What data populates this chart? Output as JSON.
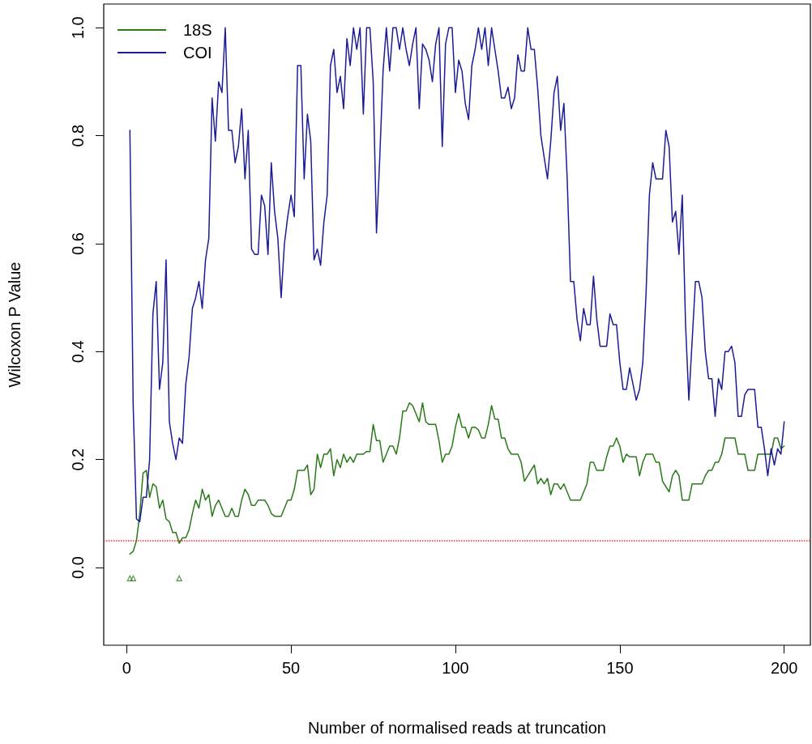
{
  "chart_data": {
    "type": "line",
    "xlabel": "Number of normalised reads at truncation",
    "ylabel": "Wilcoxon P Value",
    "x": [
      1,
      2,
      3,
      4,
      5,
      6,
      7,
      8,
      9,
      10,
      11,
      12,
      13,
      14,
      15,
      16,
      17,
      18,
      19,
      20,
      21,
      22,
      23,
      24,
      25,
      26,
      27,
      28,
      29,
      30,
      31,
      32,
      33,
      34,
      35,
      36,
      37,
      38,
      39,
      40,
      41,
      42,
      43,
      44,
      45,
      46,
      47,
      48,
      49,
      50,
      51,
      52,
      53,
      54,
      55,
      56,
      57,
      58,
      59,
      60,
      61,
      62,
      63,
      64,
      65,
      66,
      67,
      68,
      69,
      70,
      71,
      72,
      73,
      74,
      75,
      76,
      77,
      78,
      79,
      80,
      81,
      82,
      83,
      84,
      85,
      86,
      87,
      88,
      89,
      90,
      91,
      92,
      93,
      94,
      95,
      96,
      97,
      98,
      99,
      100,
      101,
      102,
      103,
      104,
      105,
      106,
      107,
      108,
      109,
      110,
      111,
      112,
      113,
      114,
      115,
      116,
      117,
      118,
      119,
      120,
      121,
      122,
      123,
      124,
      125,
      126,
      127,
      128,
      129,
      130,
      131,
      132,
      133,
      134,
      135,
      136,
      137,
      138,
      139,
      140,
      141,
      142,
      143,
      144,
      145,
      146,
      147,
      148,
      149,
      150,
      151,
      152,
      153,
      154,
      155,
      156,
      157,
      158,
      159,
      160,
      161,
      162,
      163,
      164,
      165,
      166,
      167,
      168,
      169,
      170,
      171,
      172,
      173,
      174,
      175,
      176,
      177,
      178,
      179,
      180,
      181,
      182,
      183,
      184,
      185,
      186,
      187,
      188,
      189,
      190,
      191,
      192,
      193,
      194,
      195,
      196,
      197,
      198,
      199,
      200
    ],
    "series": [
      {
        "name": "18S",
        "color": "#2a7a1a",
        "values": [
          0.025,
          0.03,
          0.05,
          0.1,
          0.175,
          0.18,
          0.13,
          0.155,
          0.15,
          0.11,
          0.125,
          0.09,
          0.085,
          0.065,
          0.065,
          0.045,
          0.055,
          0.055,
          0.07,
          0.1,
          0.125,
          0.11,
          0.145,
          0.125,
          0.135,
          0.095,
          0.115,
          0.125,
          0.11,
          0.095,
          0.095,
          0.11,
          0.095,
          0.095,
          0.125,
          0.145,
          0.135,
          0.115,
          0.115,
          0.125,
          0.125,
          0.125,
          0.115,
          0.1,
          0.095,
          0.095,
          0.095,
          0.11,
          0.125,
          0.125,
          0.145,
          0.18,
          0.18,
          0.18,
          0.19,
          0.135,
          0.145,
          0.21,
          0.185,
          0.21,
          0.21,
          0.22,
          0.17,
          0.2,
          0.185,
          0.21,
          0.195,
          0.205,
          0.195,
          0.21,
          0.21,
          0.21,
          0.215,
          0.215,
          0.265,
          0.235,
          0.235,
          0.195,
          0.21,
          0.225,
          0.225,
          0.21,
          0.24,
          0.29,
          0.29,
          0.305,
          0.3,
          0.285,
          0.27,
          0.305,
          0.27,
          0.265,
          0.265,
          0.265,
          0.235,
          0.195,
          0.21,
          0.21,
          0.225,
          0.26,
          0.285,
          0.26,
          0.26,
          0.24,
          0.26,
          0.26,
          0.255,
          0.24,
          0.24,
          0.265,
          0.3,
          0.275,
          0.275,
          0.24,
          0.24,
          0.22,
          0.21,
          0.21,
          0.21,
          0.195,
          0.16,
          0.17,
          0.18,
          0.19,
          0.155,
          0.165,
          0.155,
          0.165,
          0.135,
          0.155,
          0.155,
          0.145,
          0.155,
          0.14,
          0.125,
          0.125,
          0.125,
          0.125,
          0.14,
          0.155,
          0.195,
          0.195,
          0.18,
          0.18,
          0.18,
          0.205,
          0.225,
          0.225,
          0.24,
          0.225,
          0.195,
          0.21,
          0.205,
          0.205,
          0.205,
          0.17,
          0.195,
          0.21,
          0.21,
          0.21,
          0.195,
          0.195,
          0.16,
          0.15,
          0.14,
          0.17,
          0.18,
          0.17,
          0.125,
          0.125,
          0.125,
          0.155,
          0.155,
          0.155,
          0.155,
          0.17,
          0.18,
          0.18,
          0.195,
          0.195,
          0.21,
          0.24,
          0.24,
          0.24,
          0.24,
          0.21,
          0.21,
          0.21,
          0.18,
          0.18,
          0.18,
          0.21,
          0.21,
          0.21,
          0.21,
          0.21,
          0.24,
          0.24,
          0.22,
          0.225
        ]
      },
      {
        "name": "COI",
        "color": "#1c1c96",
        "values": [
          0.81,
          0.3,
          0.09,
          0.085,
          0.13,
          0.13,
          0.2,
          0.47,
          0.53,
          0.33,
          0.38,
          0.57,
          0.27,
          0.23,
          0.2,
          0.24,
          0.23,
          0.34,
          0.39,
          0.48,
          0.5,
          0.53,
          0.48,
          0.57,
          0.61,
          0.87,
          0.79,
          0.9,
          0.88,
          1.0,
          0.81,
          0.81,
          0.75,
          0.78,
          0.85,
          0.72,
          0.81,
          0.59,
          0.58,
          0.58,
          0.69,
          0.67,
          0.58,
          0.75,
          0.66,
          0.61,
          0.5,
          0.6,
          0.65,
          0.69,
          0.65,
          0.93,
          0.93,
          0.72,
          0.84,
          0.79,
          0.57,
          0.59,
          0.56,
          0.64,
          0.69,
          0.93,
          0.96,
          0.88,
          0.91,
          0.85,
          0.98,
          0.93,
          1.0,
          0.96,
          1.0,
          0.84,
          1.0,
          1.0,
          0.9,
          0.62,
          0.76,
          0.92,
          1.0,
          0.92,
          1.0,
          1.0,
          0.96,
          1.0,
          0.96,
          0.93,
          0.97,
          1.0,
          0.85,
          0.97,
          0.96,
          0.94,
          0.9,
          0.97,
          1.0,
          0.78,
          0.97,
          1.0,
          1.0,
          0.88,
          0.94,
          0.92,
          0.86,
          0.83,
          0.93,
          0.96,
          1.0,
          0.96,
          1.0,
          0.93,
          1.0,
          0.96,
          0.92,
          0.87,
          0.87,
          0.89,
          0.85,
          0.87,
          0.95,
          0.92,
          0.92,
          1.0,
          0.96,
          0.96,
          0.89,
          0.8,
          0.76,
          0.72,
          0.79,
          0.88,
          0.91,
          0.81,
          0.86,
          0.72,
          0.53,
          0.53,
          0.46,
          0.42,
          0.48,
          0.45,
          0.45,
          0.54,
          0.46,
          0.41,
          0.41,
          0.41,
          0.47,
          0.45,
          0.45,
          0.38,
          0.33,
          0.33,
          0.37,
          0.34,
          0.31,
          0.33,
          0.38,
          0.51,
          0.69,
          0.75,
          0.72,
          0.72,
          0.72,
          0.81,
          0.78,
          0.64,
          0.66,
          0.58,
          0.69,
          0.45,
          0.31,
          0.42,
          0.53,
          0.53,
          0.5,
          0.4,
          0.35,
          0.35,
          0.28,
          0.35,
          0.33,
          0.4,
          0.4,
          0.41,
          0.38,
          0.28,
          0.28,
          0.32,
          0.33,
          0.33,
          0.33,
          0.26,
          0.26,
          0.22,
          0.17,
          0.22,
          0.19,
          0.22,
          0.21,
          0.27
        ]
      },
      {
        "type": "scatter",
        "marker": "triangle",
        "color": "#2a7a1a",
        "x": [
          1,
          2,
          16
        ],
        "values": [
          -0.02,
          -0.02,
          -0.02
        ]
      }
    ],
    "ref_lines": [
      {
        "axis": "y",
        "value": 0.05,
        "color": "#ff3030",
        "line_style": "dotted"
      }
    ],
    "xlim": [
      -6.96,
      207.96
    ],
    "xticks": [
      0,
      50,
      100,
      150,
      200
    ],
    "ylim": [
      -0.144,
      1.044
    ],
    "yticks": [
      {
        "value": 0,
        "label": "0.0"
      },
      0.2,
      0.4,
      0.6,
      0.8,
      {
        "value": 1,
        "label": "1.0"
      }
    ],
    "legend": "top left"
  }
}
